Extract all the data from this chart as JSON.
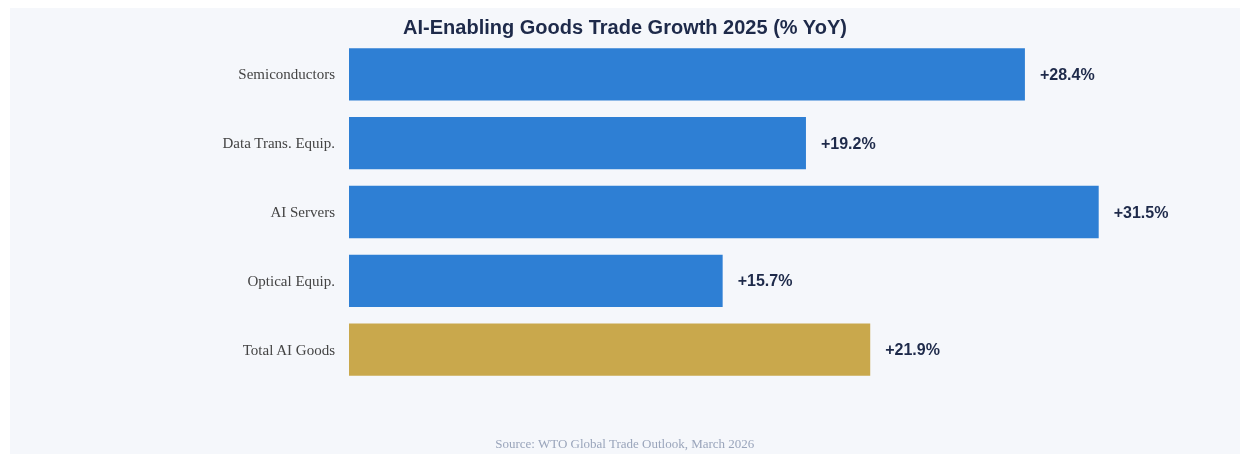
{
  "chart_data": {
    "type": "bar",
    "orientation": "horizontal",
    "title": "AI-Enabling Goods Trade Growth 2025 (% YoY)",
    "categories": [
      "Semiconductors",
      "Data Trans. Equip.",
      "AI Servers",
      "Optical Equip.",
      "Total AI Goods"
    ],
    "values": [
      28.4,
      19.2,
      31.5,
      15.7,
      21.9
    ],
    "colors": [
      "#2e7fd4",
      "#2e7fd4",
      "#2e7fd4",
      "#2e7fd4",
      "#c9a84c"
    ],
    "value_labels": [
      "+28.4%",
      "+19.2%",
      "+31.5%",
      "+15.7%",
      "+21.9%"
    ],
    "annotations": [
      "Source: WTO Global Trade Outlook, March 2026"
    ]
  }
}
